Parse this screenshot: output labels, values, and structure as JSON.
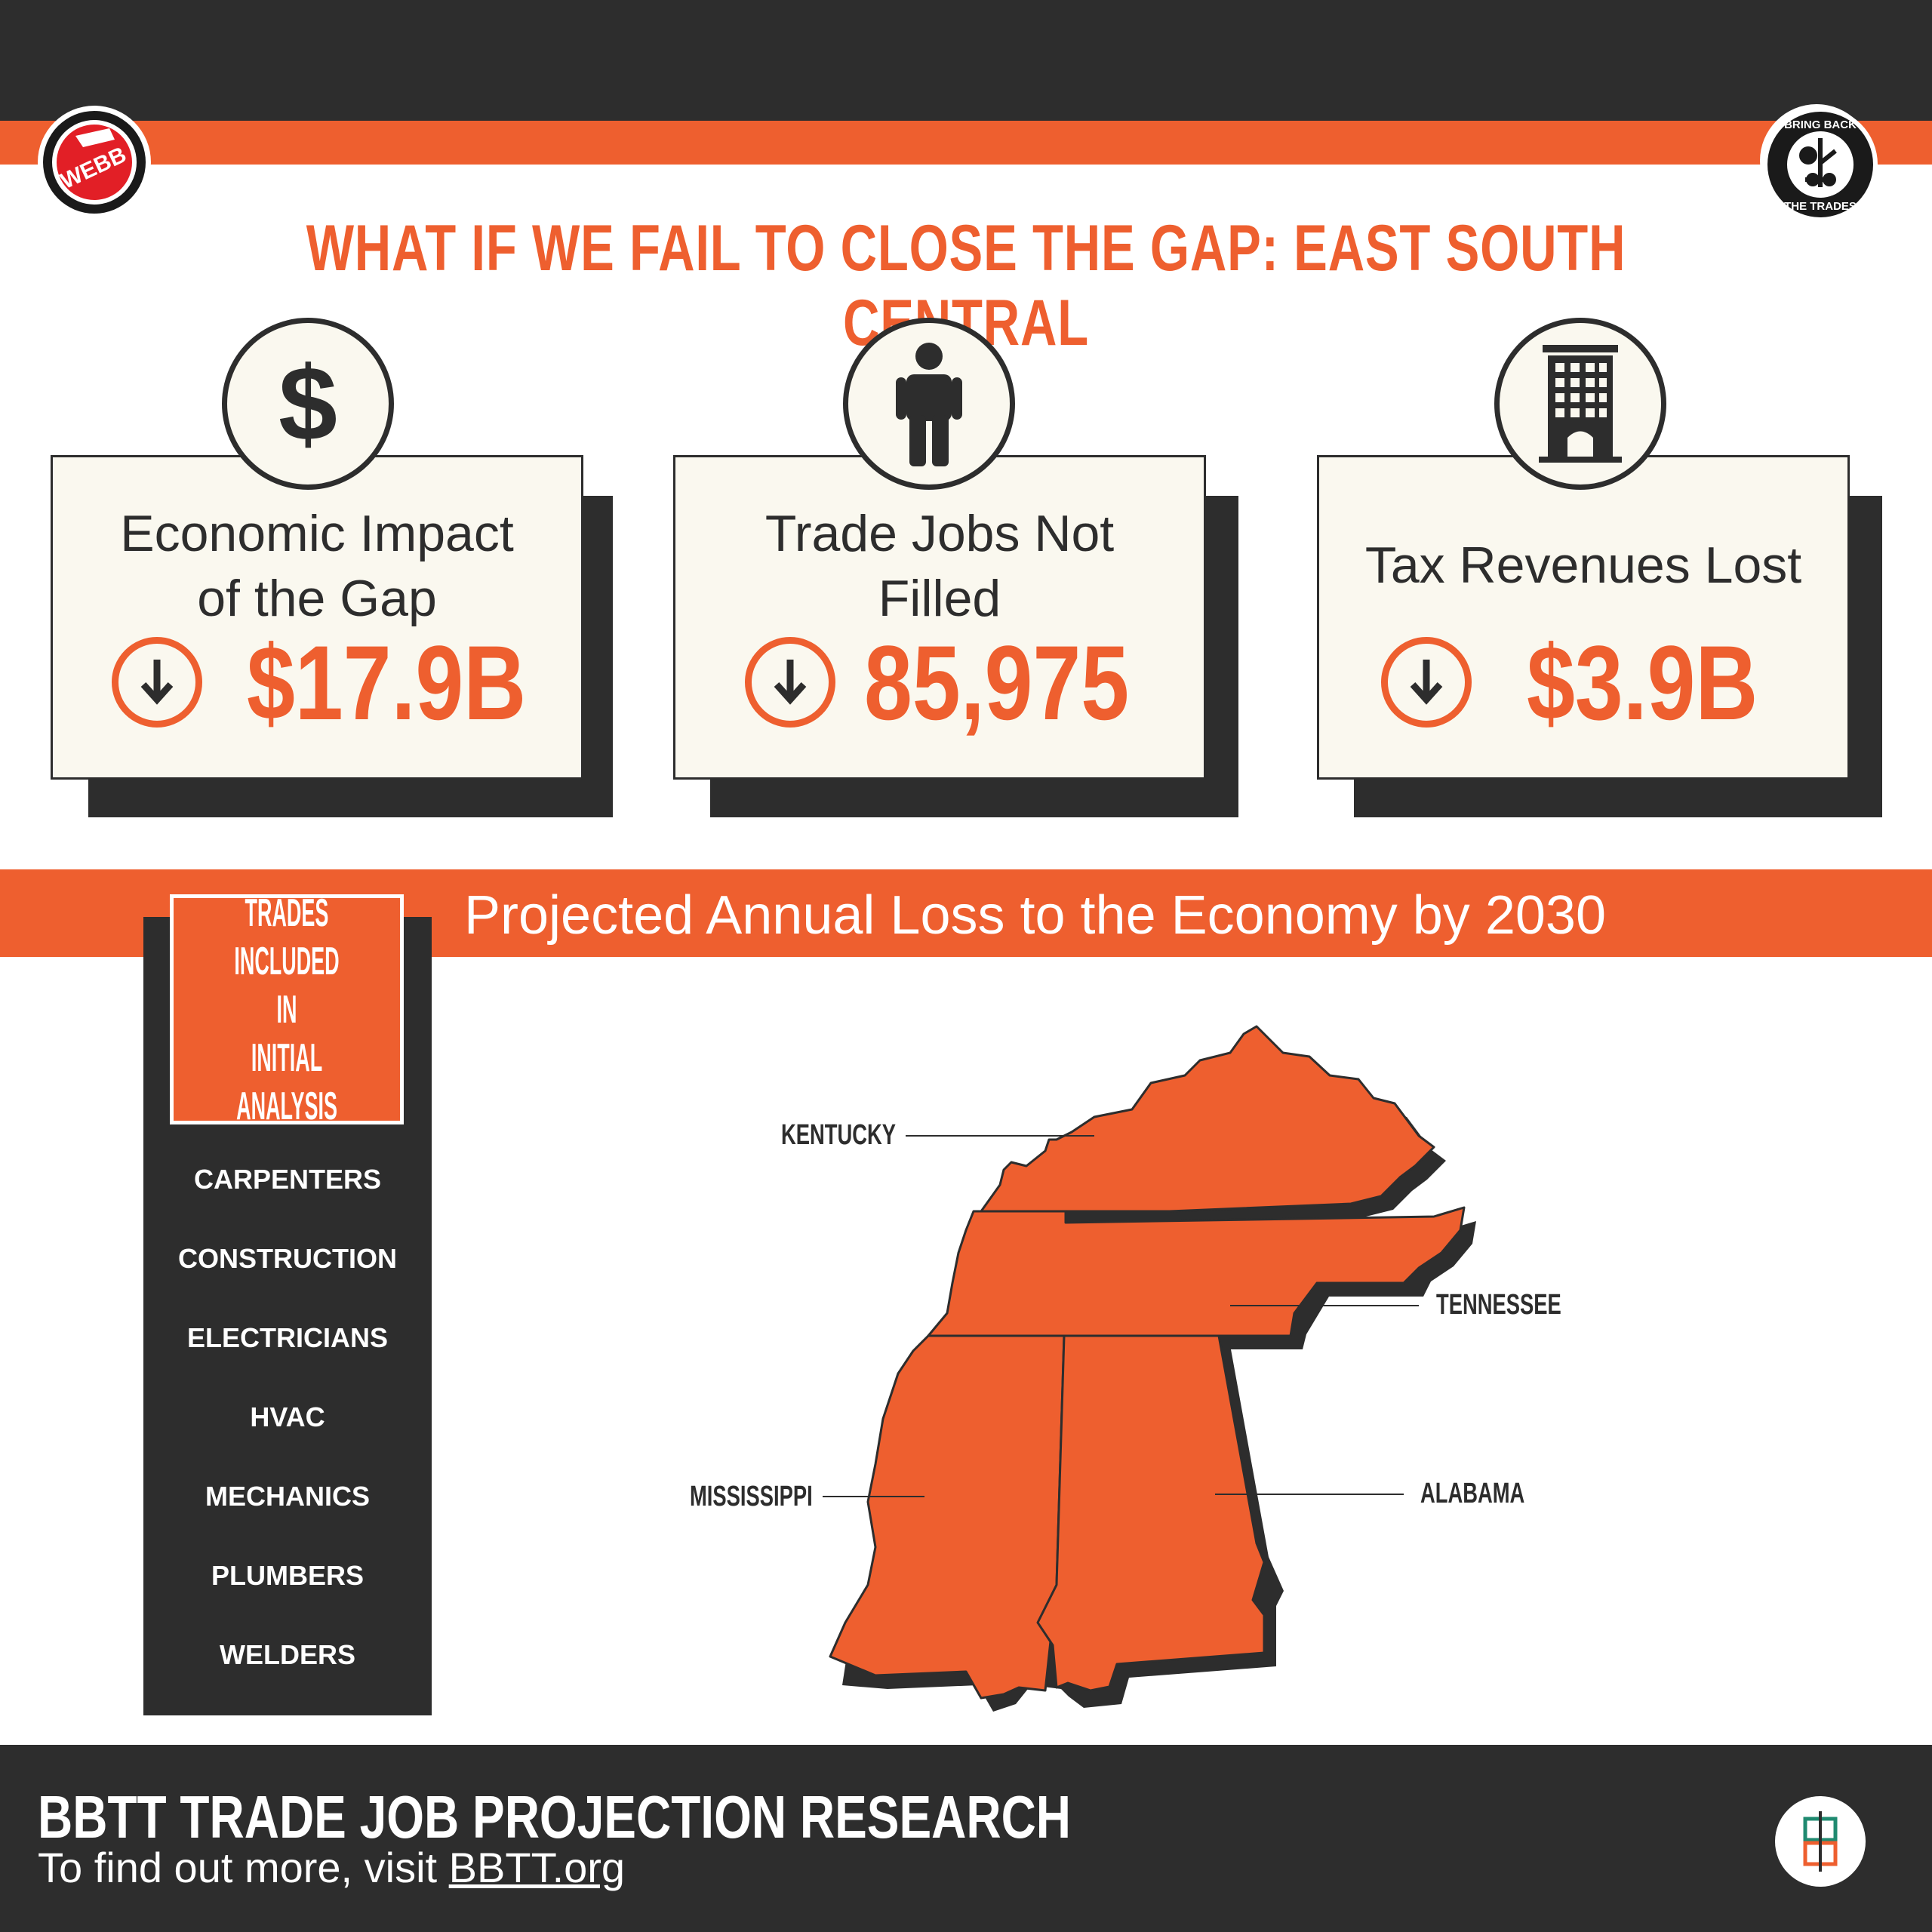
{
  "header": {
    "title": "WHAT IF WE FAIL TO CLOSE THE GAP: EAST SOUTH CENTRAL",
    "left_logo": {
      "icon": "webb-logo",
      "text": "WEBB"
    },
    "right_logo": {
      "icon": "bring-back-the-trades-logo",
      "text_top": "BRING BACK",
      "text_bottom": "THE TRADES"
    }
  },
  "cards": [
    {
      "icon": "dollar-icon",
      "label_line1": "Economic Impact",
      "label_line2": "of the Gap",
      "value": "$17.9B",
      "trend_icon": "down-arrow-icon"
    },
    {
      "icon": "person-icon",
      "label_line1": "Trade Jobs Not",
      "label_line2": "Filled",
      "value": "85,975",
      "trend_icon": "down-arrow-icon"
    },
    {
      "icon": "building-icon",
      "label_line1": "Tax Revenues Lost",
      "label_line2": "",
      "value": "$3.9B",
      "trend_icon": "down-arrow-icon"
    }
  ],
  "band": {
    "title": "Projected Annual Loss to the Economy by 2030"
  },
  "sidebar": {
    "heading": "TRADES INCLUDED IN INITIAL ANALYSIS",
    "heading_lines": [
      "TRADES",
      "INCLUDED IN",
      "INITIAL",
      "ANALYSIS"
    ],
    "trades": [
      "CARPENTERS",
      "CONSTRUCTION",
      "ELECTRICIANS",
      "HVAC",
      "MECHANICS",
      "PLUMBERS",
      "WELDERS"
    ]
  },
  "map": {
    "states": [
      "KENTUCKY",
      "TENNESSEE",
      "MISSISSIPPI",
      "ALABAMA"
    ],
    "fill_color": "#ee5f2f",
    "shadow_color": "#2d2d2d"
  },
  "footer": {
    "title": "BBTT TRADE JOB PROJECTION RESEARCH",
    "subtitle_prefix": "To find out more, visit ",
    "link": "BBTT.org",
    "logo_icon": "bbtt-monogram-logo"
  },
  "colors": {
    "accent": "#ee5f2f",
    "dark": "#2d2d2d",
    "card_bg": "#faf8ef"
  }
}
